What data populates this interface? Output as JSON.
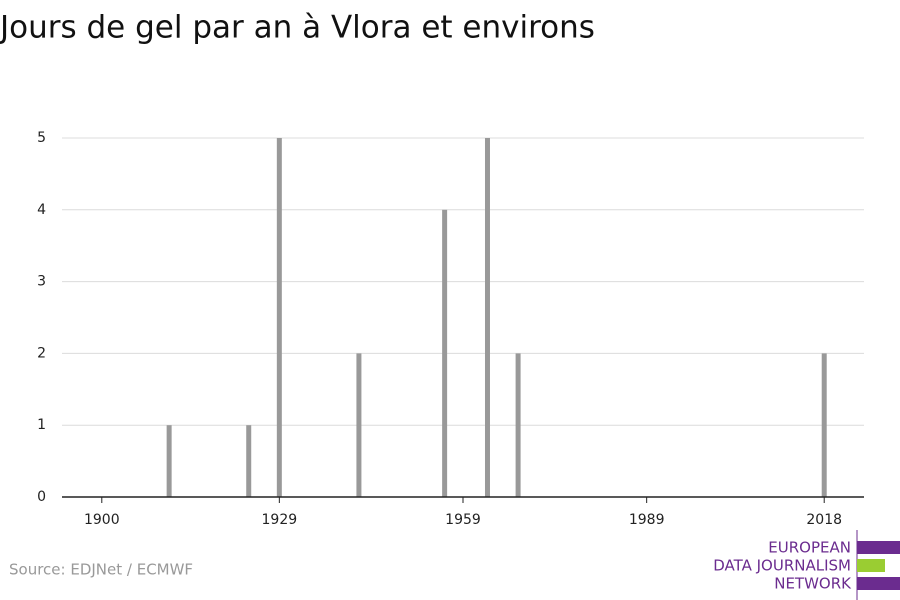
{
  "chart_data": {
    "type": "bar",
    "title": "Jours de gel par an à Vlora et environs",
    "x": [
      1911,
      1924,
      1929,
      1942,
      1956,
      1963,
      1968,
      2018
    ],
    "values": [
      1,
      1,
      5,
      2,
      4,
      5,
      2,
      2
    ],
    "color": "#999999",
    "xlim": [
      1893.5,
      2024.5
    ],
    "xticks": [
      1900,
      1929,
      1959,
      1989,
      2018
    ],
    "ylim": [
      0,
      5
    ],
    "yticks": [
      0,
      1,
      2,
      3,
      4,
      5
    ],
    "grid": true,
    "source": "Source: EDJNet / ECMWF",
    "logo": [
      "EUROPEAN",
      "DATA JOURNALISM",
      "NETWORK"
    ]
  }
}
